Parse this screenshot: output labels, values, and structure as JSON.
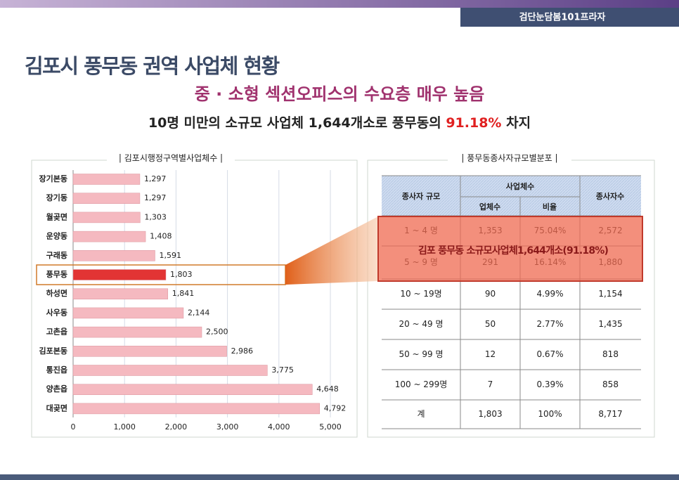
{
  "header": {
    "brand": "검단눈담봄101프라자",
    "title": "김포시 풍무동 권역 사업체 현황",
    "subtitle": "중 · 소형 섹션오피스의 수요층 매우 높음",
    "summary": [
      "10명 미만의 소규모 사업체 1,644개소로 풍무동의 ",
      "91.18%",
      " 차지"
    ]
  },
  "chart_data": {
    "type": "bar",
    "orientation": "horizontal",
    "title": "김포시행정구역별사업체수",
    "categories": [
      "장기본동",
      "장기동",
      "월곶면",
      "운양동",
      "구래동",
      "풍무동",
      "하성면",
      "사우동",
      "고촌읍",
      "김포본동",
      "통진읍",
      "양촌읍",
      "대곶면"
    ],
    "values": [
      1297,
      1297,
      1303,
      1408,
      1591,
      1803,
      1841,
      2144,
      2500,
      2986,
      3775,
      4648,
      4792
    ],
    "value_labels": [
      "1,297",
      "1,297",
      "1,303",
      "1,408",
      "1,591",
      "1,803",
      "1,841",
      "2,144",
      "2,500",
      "2,986",
      "3,775",
      "4,648",
      "4,792"
    ],
    "colors": [
      "#f5b9c0",
      "#f5b9c0",
      "#f5b9c0",
      "#f5b9c0",
      "#f5b9c0",
      "#e23434",
      "#f5b9c0",
      "#f5b9c0",
      "#f5b9c0",
      "#f5b9c0",
      "#f5b9c0",
      "#f5b9c0",
      "#f5b9c0"
    ],
    "xlim": [
      0,
      5000
    ],
    "xticks": [
      0,
      {
        "value": 1000,
        "label": "1,000"
      },
      {
        "value": 2000,
        "label": "2,000"
      },
      {
        "value": 3000,
        "label": "3,000"
      },
      {
        "value": 4000,
        "label": "4,000"
      },
      {
        "value": 5000,
        "label": "5,000"
      }
    ],
    "grid": true
  },
  "table": {
    "title": "풍무동종사자규모별분포",
    "header": {
      "scale": "종사자 규모",
      "count_group": "사업체수",
      "count": "업체수",
      "ratio": "비율",
      "workers": "종사자수"
    },
    "rows": [
      [
        "1 ~ 4 명",
        "1,353",
        "75.04%",
        "2,572"
      ],
      [
        "5 ~ 9 명",
        "291",
        "16.14%",
        "1,880"
      ],
      [
        "10 ~ 19명",
        "90",
        "4.99%",
        "1,154"
      ],
      [
        "20 ~ 49 명",
        "50",
        "2.77%",
        "1,435"
      ],
      [
        "50 ~ 99 명",
        "12",
        "0.67%",
        "818"
      ],
      [
        "100 ~ 299명",
        "7",
        "0.39%",
        "858"
      ],
      [
        "계",
        "1,803",
        "100%",
        "8,717"
      ]
    ],
    "overlay": "김포 풍무동 소규모사업체1,644개소(91.18%)"
  }
}
